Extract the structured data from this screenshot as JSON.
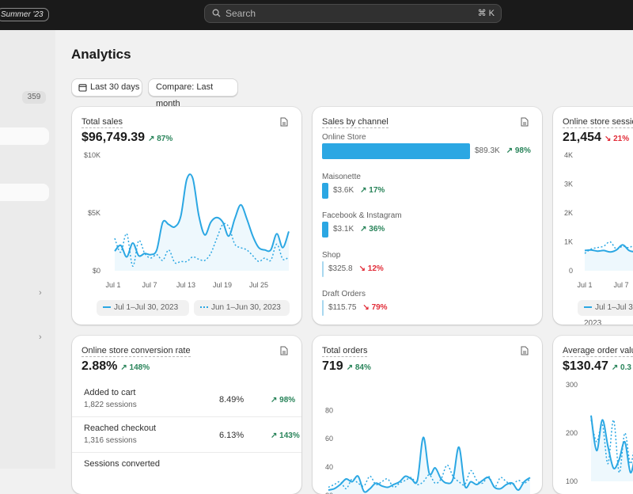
{
  "topbar": {
    "store_badge": "Summer '23",
    "search_placeholder": "Search",
    "search_shortcut": "⌘ K"
  },
  "sidebar": {
    "badge_count": "359"
  },
  "page": {
    "title": "Analytics"
  },
  "filters": {
    "date_range": "Last 30 days",
    "compare": "Compare: Last month"
  },
  "colors": {
    "accent": "#2ba7e3",
    "positive": "#29845a",
    "negative": "#e22c38"
  },
  "cards": {
    "total_sales": {
      "title": "Total sales",
      "value": "$96,749.39",
      "delta": "↗ 87%",
      "legend_current": "Jul 1–Jul 30, 2023",
      "legend_previous": "Jun 1–Jun 30, 2023"
    },
    "sales_by_channel": {
      "title": "Sales by channel",
      "channels": [
        {
          "name": "Online Store",
          "amount": "$89.3K",
          "delta": "↗ 98%",
          "trend": "up",
          "value": 89.3
        },
        {
          "name": "Maisonette",
          "amount": "$3.6K",
          "delta": "↗ 17%",
          "trend": "up",
          "value": 3.6
        },
        {
          "name": "Facebook & Instagram",
          "amount": "$3.1K",
          "delta": "↗ 36%",
          "trend": "up",
          "value": 3.1
        },
        {
          "name": "Shop",
          "amount": "$325.8",
          "delta": "↘ 12%",
          "trend": "down",
          "value": 0.33
        },
        {
          "name": "Draft Orders",
          "amount": "$115.75",
          "delta": "↘ 79%",
          "trend": "down",
          "value": 0.12
        }
      ]
    },
    "online_store_sessions": {
      "title": "Online store sessions",
      "value": "21,454",
      "delta": "↘ 21%",
      "legend_current": "Jul 1–Jul 30, 2023"
    },
    "conversion_rate": {
      "title": "Online store conversion rate",
      "value": "2.88%",
      "delta": "↗ 148%",
      "rows": [
        {
          "label": "Added to cart",
          "sessions": "1,822 sessions",
          "pct": "8.49%",
          "delta": "↗ 98%"
        },
        {
          "label": "Reached checkout",
          "sessions": "1,316 sessions",
          "pct": "6.13%",
          "delta": "↗ 143%"
        },
        {
          "label": "Sessions converted",
          "sessions": "",
          "pct": "",
          "delta": ""
        }
      ]
    },
    "total_orders": {
      "title": "Total orders",
      "value": "719",
      "delta": "↗ 84%"
    },
    "avg_order_value": {
      "title": "Average order value",
      "value": "$130.47",
      "delta": "↗ 0.3"
    }
  },
  "chart_data": [
    {
      "type": "line",
      "name": "total-sales",
      "x": [
        "Jul 1",
        "Jul 2",
        "Jul 3",
        "Jul 4",
        "Jul 5",
        "Jul 6",
        "Jul 7",
        "Jul 8",
        "Jul 9",
        "Jul 10",
        "Jul 11",
        "Jul 12",
        "Jul 13",
        "Jul 14",
        "Jul 15",
        "Jul 16",
        "Jul 17",
        "Jul 18",
        "Jul 19",
        "Jul 20",
        "Jul 21",
        "Jul 22",
        "Jul 23",
        "Jul 24",
        "Jul 25",
        "Jul 26",
        "Jul 27",
        "Jul 28",
        "Jul 29",
        "Jul 30"
      ],
      "xticks": [
        "Jul 1",
        "Jul 7",
        "Jul 13",
        "Jul 19",
        "Jul 25"
      ],
      "yticks": [
        "$0",
        "$5K",
        "$10K"
      ],
      "ylim": [
        0,
        10000
      ],
      "series": [
        {
          "name": "Jul 1–Jul 30, 2023",
          "style": "solid",
          "values": [
            1700,
            2200,
            1200,
            2400,
            1300,
            1500,
            1400,
            1800,
            4200,
            4000,
            3800,
            4700,
            7900,
            8000,
            4800,
            3100,
            4200,
            4600,
            4200,
            3000,
            4500,
            5700,
            4500,
            3000,
            2000,
            1800,
            1800,
            3200,
            2000,
            3400
          ]
        },
        {
          "name": "Jun 1–Jun 30, 2023",
          "style": "dotted",
          "values": [
            2800,
            1600,
            3200,
            400,
            2600,
            1500,
            1100,
            1400,
            900,
            1800,
            700,
            800,
            800,
            1200,
            1000,
            900,
            1500,
            2800,
            4000,
            3800,
            2300,
            2000,
            1800,
            1300,
            800,
            1100,
            900,
            2300,
            1000,
            1200
          ]
        }
      ]
    },
    {
      "type": "bar",
      "name": "sales-by-channel",
      "orientation": "horizontal",
      "categories": [
        "Online Store",
        "Maisonette",
        "Facebook & Instagram",
        "Shop",
        "Draft Orders"
      ],
      "values": [
        89300,
        3600,
        3100,
        325.8,
        115.75
      ]
    },
    {
      "type": "line",
      "name": "online-store-sessions",
      "xticks": [
        "Jul 1",
        "Jul 7"
      ],
      "yticks": [
        "0",
        "1K",
        "2K",
        "3K",
        "4K"
      ],
      "ylim": [
        0,
        4000
      ],
      "series": [
        {
          "name": "Jul 1–Jul 30, 2023",
          "style": "solid",
          "values": [
            700,
            720,
            680,
            700,
            650,
            720,
            900,
            700,
            650,
            600
          ]
        },
        {
          "name": "previous",
          "style": "dotted",
          "values": [
            600,
            750,
            800,
            850,
            1000,
            750,
            850,
            800,
            900,
            700
          ]
        }
      ]
    },
    {
      "type": "line",
      "name": "total-orders",
      "yticks": [
        "20",
        "40",
        "60",
        "80"
      ],
      "ylim": [
        0,
        80
      ],
      "series": [
        {
          "name": "current",
          "style": "solid",
          "values": [
            4,
            5,
            8,
            12,
            10,
            14,
            3,
            5,
            9,
            7,
            6,
            8,
            10,
            14,
            12,
            11,
            42,
            16,
            20,
            12,
            9,
            12,
            35,
            7,
            10,
            8,
            11,
            13,
            6,
            5,
            8,
            9,
            4,
            10,
            13
          ]
        },
        {
          "name": "previous",
          "style": "dotted",
          "values": [
            6,
            8,
            10,
            5,
            12,
            9,
            7,
            14,
            8,
            10,
            12,
            6,
            9,
            11,
            13,
            8,
            10,
            15,
            9,
            12,
            22,
            14,
            10,
            8,
            18,
            11,
            9,
            14,
            6,
            13,
            10,
            8,
            11,
            9,
            12
          ]
        }
      ]
    },
    {
      "type": "line",
      "name": "average-order-value",
      "yticks": [
        "100",
        "200",
        "300"
      ],
      "ylim": [
        90,
        310
      ],
      "series": [
        {
          "name": "current",
          "style": "solid",
          "values": [
            240,
            160,
            230,
            170,
            120,
            140,
            180,
            110,
            150,
            120
          ]
        },
        {
          "name": "previous",
          "style": "dotted",
          "values": [
            230,
            180,
            220,
            130,
            230,
            110,
            200,
            130,
            180,
            140
          ]
        }
      ]
    }
  ]
}
